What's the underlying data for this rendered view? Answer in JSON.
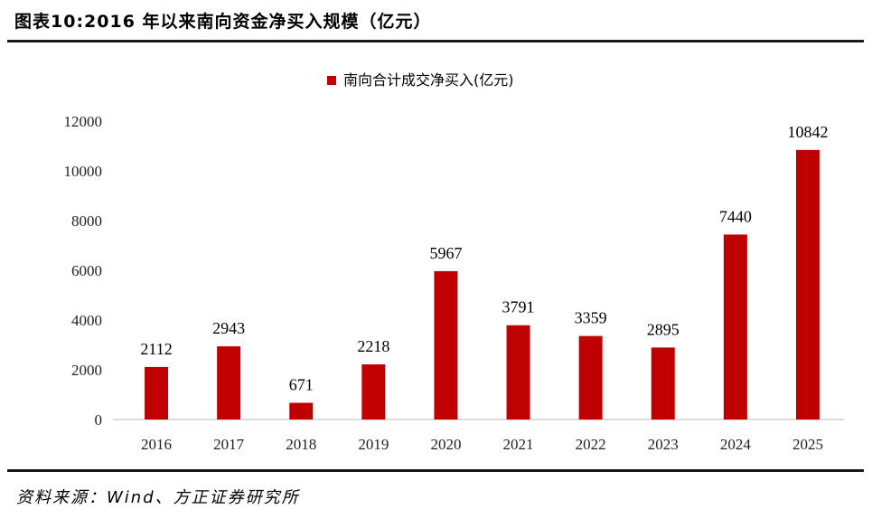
{
  "figure": {
    "title": "图表10:2016 年以来南向资金净买入规模（亿元）",
    "source": "资料来源：Wind、方正证券研究所"
  },
  "chart_data": {
    "type": "bar",
    "categories": [
      "2016",
      "2017",
      "2018",
      "2019",
      "2020",
      "2021",
      "2022",
      "2023",
      "2024",
      "2025"
    ],
    "series": [
      {
        "name": "南向合计成交净买入(亿元)",
        "values": [
          2112,
          2943,
          671,
          2218,
          5967,
          3791,
          3359,
          2895,
          7440,
          10842
        ],
        "color": "#c00000"
      }
    ],
    "data_labels": [
      "2112",
      "2943",
      "671",
      "2218",
      "5967",
      "3791",
      "3359",
      "2895",
      "7440",
      "10842"
    ],
    "ylim": [
      0,
      12000
    ],
    "yticks": [
      0,
      2000,
      4000,
      6000,
      8000,
      10000,
      12000
    ],
    "grid": false,
    "legend_position": "top-center"
  }
}
